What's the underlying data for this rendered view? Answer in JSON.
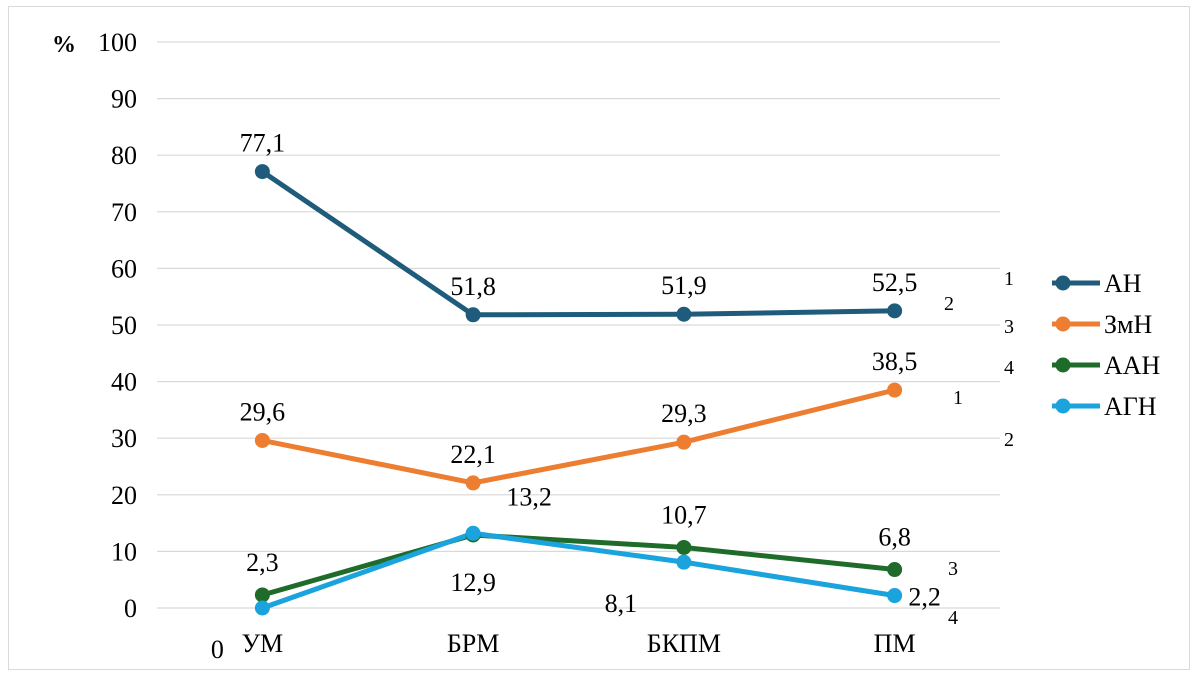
{
  "chart_data": {
    "type": "line",
    "categories": [
      "УМ",
      "БРМ",
      "БКПМ",
      "ПМ"
    ],
    "ylim": [
      0,
      100
    ],
    "yticks": [
      0,
      10,
      20,
      30,
      40,
      50,
      60,
      70,
      80,
      90,
      100
    ],
    "ylabel": "%",
    "grid": true,
    "legend_position": "right",
    "series": [
      {
        "name": "АН",
        "values": [
          77.1,
          51.8,
          51.9,
          52.5
        ],
        "labels": [
          "77,1",
          "51,8",
          "51,9",
          "52,5"
        ],
        "color": "#1f5b7a"
      },
      {
        "name": "ЗмН",
        "values": [
          29.6,
          22.1,
          29.3,
          38.5
        ],
        "labels": [
          "29,6",
          "22,1",
          "29,3",
          "38,5"
        ],
        "color": "#ed7d31"
      },
      {
        "name": "ААН",
        "values": [
          2.3,
          12.9,
          10.7,
          6.8
        ],
        "labels": [
          "2,3",
          "12,9",
          "10,7",
          "6,8"
        ],
        "color": "#1e6b2a"
      },
      {
        "name": "АГН",
        "values": [
          0,
          13.2,
          8.1,
          2.2
        ],
        "labels": [
          "0",
          "13,2",
          "8,1",
          "2,2"
        ],
        "color": "#1aa3dc"
      }
    ],
    "annotations": [
      "1",
      "2",
      "3",
      "4",
      "1",
      "2",
      "3",
      "4"
    ]
  }
}
